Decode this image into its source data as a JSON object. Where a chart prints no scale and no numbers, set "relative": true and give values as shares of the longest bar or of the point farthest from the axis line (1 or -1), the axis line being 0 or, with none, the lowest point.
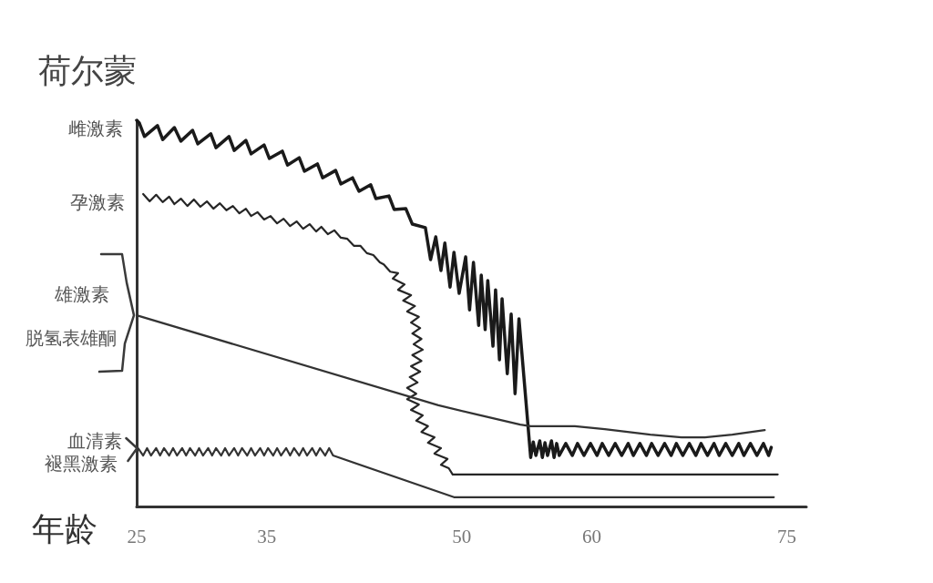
{
  "chart_data": {
    "type": "line",
    "ylabel": "荷尔蒙",
    "xlabel": "年龄",
    "relative": true,
    "xlim": [
      25,
      76.5
    ],
    "xticks": [
      25,
      35,
      50,
      60,
      75
    ],
    "tick_labels": "x",
    "marker": "none",
    "line_style": "solid",
    "annotations": [
      "脱氢表雄酮",
      "褪黑激素"
    ],
    "series": [
      {
        "name": "雌激素",
        "color": "#1a1a1a",
        "x": [
          25.0,
          25.2,
          25.6,
          26.6,
          27.0,
          27.9,
          28.4,
          29.3,
          29.7,
          30.7,
          31.1,
          32.1,
          32.5,
          33.4,
          33.8,
          34.8,
          35.2,
          36.2,
          36.6,
          37.5,
          37.9,
          38.9,
          39.3,
          40.3,
          40.7,
          41.6,
          42.1,
          43.0,
          43.4,
          44.4,
          44.8,
          45.7,
          46.2,
          47.2,
          47.6,
          48.0,
          48.4,
          48.7,
          49.1,
          49.4,
          49.8,
          50.3,
          50.6,
          50.9,
          51.3,
          51.5,
          51.8,
          52.0,
          52.4,
          52.6,
          52.9,
          53.1,
          53.5,
          53.8,
          54.1,
          54.4,
          55.3,
          55.5,
          55.7,
          56.0,
          56.2,
          56.4,
          56.6,
          56.9,
          57.1,
          57.3,
          57.5,
          58.0,
          58.5,
          58.9,
          59.4,
          59.9,
          60.4,
          60.8,
          61.3,
          61.8,
          62.3,
          62.8,
          63.2,
          63.7,
          64.2,
          64.6,
          65.1,
          65.6,
          66.1,
          66.5,
          67.0,
          67.5,
          68.0,
          68.4,
          68.9,
          69.4,
          69.8,
          70.3,
          70.8,
          71.3,
          71.7,
          72.2,
          72.7,
          73.2,
          73.6,
          73.8
        ],
        "values": [
          1.0,
          0.993,
          0.958,
          0.986,
          0.95,
          0.981,
          0.946,
          0.974,
          0.939,
          0.965,
          0.929,
          0.958,
          0.922,
          0.948,
          0.913,
          0.936,
          0.901,
          0.92,
          0.884,
          0.903,
          0.868,
          0.887,
          0.851,
          0.87,
          0.835,
          0.851,
          0.816,
          0.833,
          0.797,
          0.804,
          0.769,
          0.771,
          0.731,
          0.722,
          0.639,
          0.698,
          0.611,
          0.682,
          0.568,
          0.658,
          0.552,
          0.646,
          0.509,
          0.632,
          0.469,
          0.599,
          0.458,
          0.585,
          0.415,
          0.561,
          0.38,
          0.538,
          0.344,
          0.498,
          0.292,
          0.486,
          0.127,
          0.167,
          0.132,
          0.17,
          0.127,
          0.165,
          0.132,
          0.17,
          0.127,
          0.163,
          0.132,
          0.163,
          0.132,
          0.163,
          0.132,
          0.163,
          0.132,
          0.163,
          0.132,
          0.163,
          0.132,
          0.163,
          0.132,
          0.163,
          0.132,
          0.163,
          0.132,
          0.163,
          0.132,
          0.163,
          0.132,
          0.163,
          0.132,
          0.163,
          0.132,
          0.163,
          0.132,
          0.163,
          0.132,
          0.163,
          0.132,
          0.163,
          0.132,
          0.163,
          0.132,
          0.153
        ]
      },
      {
        "name": "孕激素",
        "color": "#262626",
        "x": [
          25.5,
          26.0,
          26.5,
          27.0,
          27.5,
          27.9,
          28.4,
          28.9,
          29.4,
          29.9,
          30.4,
          30.9,
          31.4,
          31.9,
          32.4,
          32.9,
          33.4,
          33.8,
          34.3,
          34.8,
          35.3,
          35.8,
          36.3,
          36.8,
          37.3,
          37.8,
          38.3,
          38.8,
          39.2,
          39.7,
          40.2,
          40.7,
          41.2,
          41.7,
          42.2,
          42.7,
          43.2,
          43.7,
          44.0,
          44.5,
          45.1,
          44.7,
          45.6,
          45.1,
          46.1,
          45.5,
          46.4,
          45.8,
          46.7,
          46.1,
          46.8,
          46.2,
          46.9,
          46.3,
          47.0,
          46.2,
          46.9,
          46.1,
          46.8,
          46.0,
          46.6,
          45.8,
          46.5,
          45.8,
          46.7,
          46.1,
          47.0,
          46.5,
          47.4,
          46.9,
          47.9,
          47.4,
          48.4,
          47.9,
          48.9,
          48.4,
          49.0,
          49.3,
          74.3
        ],
        "values": [
          0.809,
          0.79,
          0.807,
          0.788,
          0.802,
          0.783,
          0.797,
          0.778,
          0.795,
          0.776,
          0.79,
          0.771,
          0.785,
          0.767,
          0.778,
          0.759,
          0.771,
          0.752,
          0.762,
          0.743,
          0.752,
          0.733,
          0.745,
          0.726,
          0.738,
          0.719,
          0.731,
          0.712,
          0.724,
          0.705,
          0.715,
          0.696,
          0.693,
          0.675,
          0.675,
          0.656,
          0.651,
          0.632,
          0.627,
          0.608,
          0.604,
          0.59,
          0.575,
          0.561,
          0.547,
          0.533,
          0.519,
          0.505,
          0.491,
          0.476,
          0.462,
          0.448,
          0.434,
          0.42,
          0.406,
          0.392,
          0.377,
          0.363,
          0.349,
          0.335,
          0.321,
          0.307,
          0.292,
          0.278,
          0.264,
          0.25,
          0.236,
          0.222,
          0.208,
          0.193,
          0.179,
          0.165,
          0.151,
          0.137,
          0.123,
          0.108,
          0.099,
          0.083,
          0.083
        ]
      },
      {
        "name": "雄激素",
        "color": "#333333",
        "x": [
          25.0,
          48.2,
          51.2,
          54.5,
          55.3,
          58.7,
          61.0,
          64.5,
          66.9,
          68.7,
          70.8,
          73.3
        ],
        "values": [
          0.495,
          0.262,
          0.238,
          0.212,
          0.208,
          0.208,
          0.2,
          0.186,
          0.179,
          0.179,
          0.186,
          0.198
        ]
      },
      {
        "name": "血清素",
        "color": "#333333",
        "x": [
          25.1,
          25.5,
          25.8,
          26.1,
          26.5,
          26.8,
          27.1,
          27.5,
          27.8,
          28.1,
          28.5,
          28.8,
          29.1,
          29.5,
          29.8,
          30.1,
          30.5,
          30.8,
          31.1,
          31.5,
          31.8,
          32.1,
          32.5,
          32.8,
          33.1,
          33.5,
          33.8,
          34.1,
          34.5,
          34.8,
          35.1,
          35.5,
          35.8,
          36.1,
          36.5,
          36.8,
          37.1,
          37.5,
          37.8,
          38.1,
          38.5,
          38.8,
          39.1,
          39.5,
          39.8,
          40.1,
          49.4,
          74.0
        ],
        "values": [
          0.151,
          0.132,
          0.151,
          0.132,
          0.151,
          0.132,
          0.151,
          0.132,
          0.151,
          0.132,
          0.151,
          0.132,
          0.151,
          0.132,
          0.151,
          0.132,
          0.151,
          0.132,
          0.151,
          0.132,
          0.151,
          0.132,
          0.151,
          0.132,
          0.151,
          0.132,
          0.151,
          0.132,
          0.151,
          0.132,
          0.151,
          0.132,
          0.151,
          0.132,
          0.151,
          0.132,
          0.151,
          0.132,
          0.151,
          0.132,
          0.151,
          0.132,
          0.151,
          0.132,
          0.151,
          0.132,
          0.024,
          0.024
        ]
      }
    ]
  }
}
